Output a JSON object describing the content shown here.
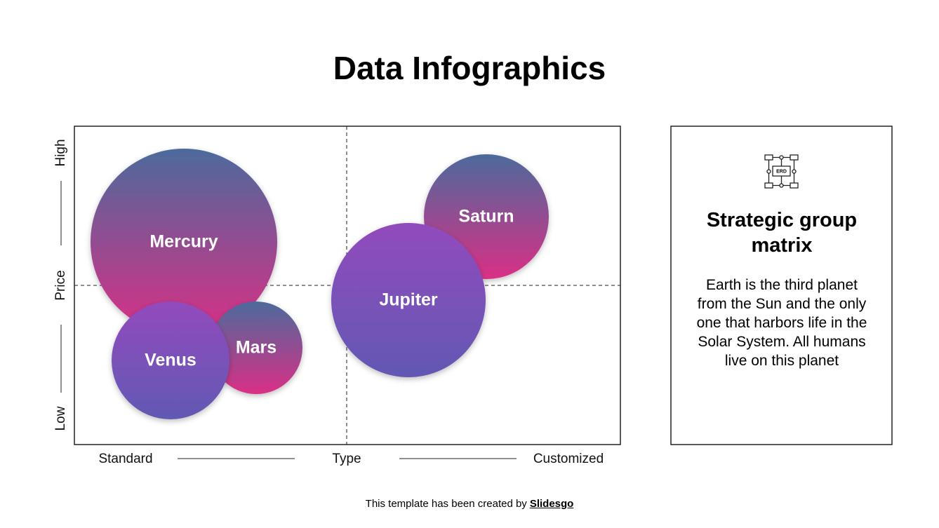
{
  "title": "Data Infographics",
  "matrix": {
    "y_axis": {
      "high": "High",
      "label": "Price",
      "low": "Low"
    },
    "x_axis": {
      "left": "Standard",
      "label": "Type",
      "right": "Customized"
    },
    "bubbles": [
      {
        "label": "Mercury"
      },
      {
        "label": "Saturn"
      },
      {
        "label": "Mars"
      },
      {
        "label": "Venus"
      },
      {
        "label": "Jupiter"
      }
    ]
  },
  "panel": {
    "icon_label": "ERD",
    "heading": "Strategic group matrix",
    "body": "Earth is the third planet from the Sun and the only one that harbors life in the Solar System. All humans live on this planet"
  },
  "footer": {
    "text": "This template has been created by",
    "link": "Slidesgo"
  }
}
